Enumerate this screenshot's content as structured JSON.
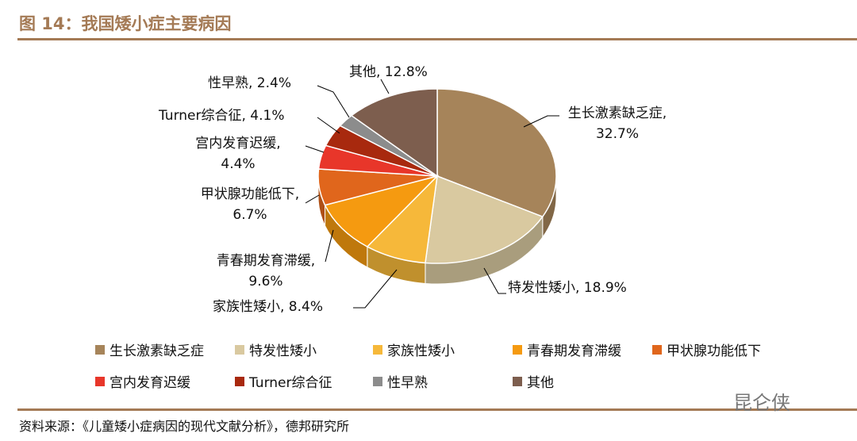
{
  "title": "图 14：我国矮小症主要病因",
  "source": "资料来源：《儿童矮小症病因的现代文献分析》，德邦研究所",
  "watermark": "昆仑侠",
  "chart_data": {
    "type": "pie",
    "style": "3d",
    "start": "12 o'clock, clockwise",
    "legend_placement": "bottom",
    "slices": [
      {
        "name": "生长激素缺乏症",
        "value": 32.7,
        "label": "生长激素缺乏症, 32.7%",
        "color": "#a6845a"
      },
      {
        "name": "特发性矮小",
        "value": 18.9,
        "label": "特发性矮小, 18.9%",
        "color": "#d9c9a0"
      },
      {
        "name": "家族性矮小",
        "value": 8.4,
        "label": "家族性矮小, 8.4%",
        "color": "#f6b83a"
      },
      {
        "name": "青春期发育滞缓",
        "value": 9.6,
        "label": "青春期发育滞缓, 9.6%",
        "color": "#f59a10"
      },
      {
        "name": "甲状腺功能低下",
        "value": 6.7,
        "label": "甲状腺功能低下, 6.7%",
        "color": "#e0661c"
      },
      {
        "name": "宫内发育迟缓",
        "value": 4.4,
        "label": "宫内发育迟缓, 4.4%",
        "color": "#e8362a"
      },
      {
        "name": "Turner综合征",
        "value": 4.1,
        "label": "Turner综合征, 4.1%",
        "color": "#a8290e"
      },
      {
        "name": "性早熟",
        "value": 2.4,
        "label": "性早熟, 2.4%",
        "color": "#8c8c8c"
      },
      {
        "name": "其他",
        "value": 12.8,
        "label": "其他, 12.8%",
        "color": "#7d5e4e"
      }
    ]
  }
}
